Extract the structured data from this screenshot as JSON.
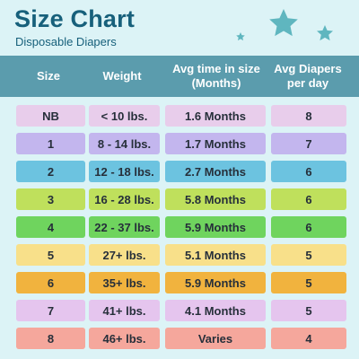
{
  "header": {
    "title": "Size Chart",
    "subtitle": "Disposable Diapers"
  },
  "columns": {
    "size": "Size",
    "weight": "Weight",
    "avg_time": "Avg time in size (Months)",
    "avg_diapers": "Avg Diapers per day"
  },
  "rows": [
    {
      "size": "NB",
      "weight": "< 10 lbs.",
      "time": "1.6 Months",
      "per_day": "8",
      "color": "#e8cdeb"
    },
    {
      "size": "1",
      "weight": "8 - 14 lbs.",
      "time": "1.7 Months",
      "per_day": "7",
      "color": "#c3b6ee"
    },
    {
      "size": "2",
      "weight": "12 - 18 lbs.",
      "time": "2.7 Months",
      "per_day": "6",
      "color": "#6cc3e0"
    },
    {
      "size": "3",
      "weight": "16 - 28 lbs.",
      "time": "5.8 Months",
      "per_day": "6",
      "color": "#bfe05c"
    },
    {
      "size": "4",
      "weight": "22 - 37 lbs.",
      "time": "5.9 Months",
      "per_day": "6",
      "color": "#6fd45e"
    },
    {
      "size": "5",
      "weight": "27+ lbs.",
      "time": "5.1 Months",
      "per_day": "5",
      "color": "#f8e08a"
    },
    {
      "size": "6",
      "weight": "35+ lbs.",
      "time": "5.9 Months",
      "per_day": "5",
      "color": "#f1b33e"
    },
    {
      "size": "7",
      "weight": "41+ lbs.",
      "time": "4.1 Months",
      "per_day": "5",
      "color": "#e5c5ee"
    },
    {
      "size": "8",
      "weight": "46+ lbs.",
      "time": "Varies",
      "per_day": "4",
      "color": "#f5a79c"
    }
  ],
  "decor": {
    "star_color": "#5fb6bf",
    "header_band_color": "#5b9cad"
  }
}
